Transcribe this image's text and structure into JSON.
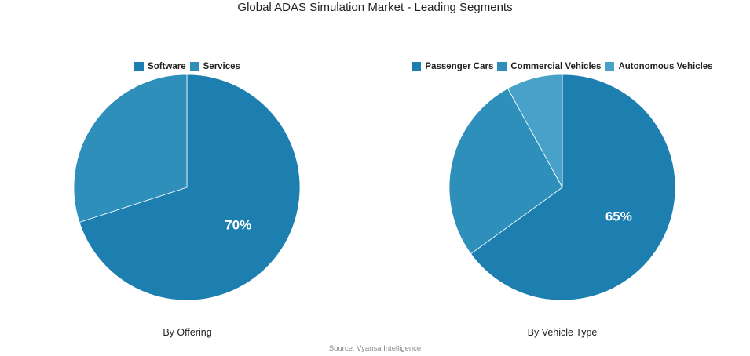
{
  "title": "Global ADAS Simulation Market - Leading Segments",
  "source": "Source: Vyansa Intelligence",
  "colors": {
    "primary": "#1c7fb0",
    "secondary": "#2f8fbb",
    "tertiary": "#47a1c8",
    "label": "#ffffff"
  },
  "chart_data": [
    {
      "type": "pie",
      "title": "",
      "caption": "By Offering",
      "legend": [
        "Software",
        "Services"
      ],
      "values": [
        70,
        30
      ],
      "unit": "%",
      "data_labels": [
        "70%",
        ""
      ],
      "legend_position": "top-center"
    },
    {
      "type": "pie",
      "title": "",
      "caption": "By Vehicle Type",
      "legend": [
        "Passenger Cars",
        "Commercial Vehicles",
        "Autonomous Vehicles"
      ],
      "values": [
        65,
        27,
        8
      ],
      "unit": "%",
      "data_labels": [
        "65%",
        "",
        ""
      ],
      "legend_position": "top-center"
    }
  ]
}
